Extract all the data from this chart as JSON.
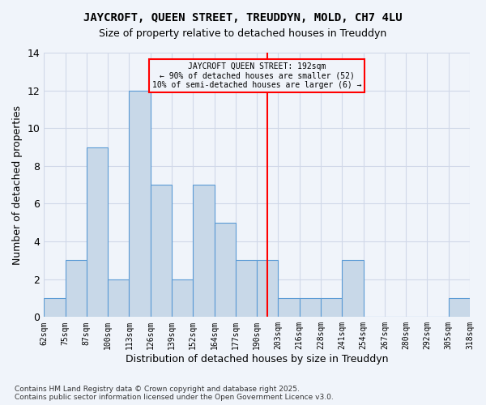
{
  "title": "JAYCROFT, QUEEN STREET, TREUDDYN, MOLD, CH7 4LU",
  "subtitle": "Size of property relative to detached houses in Treuddyn",
  "xlabel": "Distribution of detached houses by size in Treuddyn",
  "ylabel": "Number of detached properties",
  "footer": "Contains HM Land Registry data © Crown copyright and database right 2025.\nContains public sector information licensed under the Open Government Licence v3.0.",
  "tick_labels": [
    "62sqm",
    "75sqm",
    "87sqm",
    "100sqm",
    "113sqm",
    "126sqm",
    "139sqm",
    "152sqm",
    "164sqm",
    "177sqm",
    "190sqm",
    "203sqm",
    "216sqm",
    "228sqm",
    "241sqm",
    "254sqm",
    "267sqm",
    "280sqm",
    "292sqm",
    "305sqm",
    "318sqm"
  ],
  "values": [
    1,
    3,
    9,
    2,
    12,
    7,
    2,
    7,
    5,
    3,
    3,
    1,
    1,
    1,
    3,
    0,
    0,
    0,
    0,
    1
  ],
  "bar_color": "#c8d8e8",
  "bar_edge_color": "#5b9bd5",
  "grid_color": "#d0d8e8",
  "background_color": "#f0f4fa",
  "vline_x": 10,
  "vline_color": "red",
  "annotation_text": "JAYCROFT QUEEN STREET: 192sqm\n← 90% of detached houses are smaller (52)\n10% of semi-detached houses are larger (6) →",
  "annotation_box_color": "red",
  "ylim": [
    0,
    14
  ],
  "yticks": [
    0,
    2,
    4,
    6,
    8,
    10,
    12,
    14
  ]
}
